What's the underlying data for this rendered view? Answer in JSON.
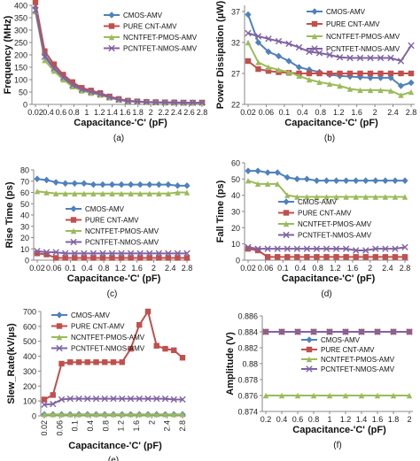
{
  "series_colors": [
    "#4f81bd",
    "#c0504d",
    "#9bbb59",
    "#8064a2"
  ],
  "series_markers": [
    "diamond",
    "square",
    "triangle",
    "cross"
  ],
  "chart_data": [
    {
      "panel": "(a)",
      "type": "line",
      "xlabel": "Capacitance-'C' (pF)",
      "ylabel": "Frequency (MHz)",
      "xticks": [
        "0.02",
        "0.4",
        "0.6",
        "0.8",
        "1",
        "1.2",
        "1.4",
        "1.6",
        "1.8",
        "2",
        "2.2",
        "2.4",
        "2.6",
        "2.8"
      ],
      "ylim": [
        0,
        400
      ],
      "yticks": [
        0,
        50,
        100,
        150,
        200,
        250,
        300,
        350,
        400
      ],
      "legend": "top-right",
      "x": [
        0.02,
        0.06,
        0.1,
        0.2,
        0.3,
        0.4,
        0.5,
        0.6,
        0.8,
        1.0,
        1.2,
        1.4,
        1.6,
        1.8,
        2.0,
        2.2,
        2.4,
        2.6,
        2.8
      ],
      "series": [
        {
          "name": "CMOS-AMV",
          "values": [
            390,
            200,
            150,
            112,
            82,
            62,
            52,
            42,
            30,
            20,
            14,
            12,
            10,
            9,
            8,
            8,
            7,
            7,
            7
          ]
        },
        {
          "name": "PURE CNT-AMV",
          "values": [
            412,
            215,
            162,
            120,
            90,
            67,
            56,
            46,
            32,
            22,
            15,
            12,
            10,
            9,
            8,
            8,
            7,
            7,
            7
          ]
        },
        {
          "name": "NCNTFET-PMOS-AMV",
          "values": [
            375,
            178,
            135,
            100,
            72,
            55,
            46,
            38,
            27,
            18,
            13,
            11,
            9,
            8,
            7,
            7,
            6,
            6,
            6
          ]
        },
        {
          "name": "PCNTFET-NMOS-AMV",
          "values": [
            380,
            192,
            145,
            108,
            78,
            60,
            50,
            41,
            29,
            19,
            13,
            11,
            9,
            8,
            8,
            7,
            7,
            7,
            7
          ]
        }
      ]
    },
    {
      "panel": "(b)",
      "type": "line",
      "xlabel": "Capacitance-'C' (pF)",
      "ylabel": "Power Dissipation (µW)",
      "xticks": [
        "0.02",
        "0.06",
        "0.1",
        "0.4",
        "0.8",
        "1.2",
        "1.6",
        "2",
        "2.4",
        "2.8"
      ],
      "ylim": [
        22,
        38
      ],
      "yticks": [
        22,
        27,
        32,
        37
      ],
      "legend": "top-right",
      "x": [
        0.02,
        0.06,
        0.1,
        0.2,
        0.4,
        0.6,
        0.8,
        1.0,
        1.2,
        1.4,
        1.6,
        1.8,
        2.0,
        2.2,
        2.4,
        2.6,
        2.8
      ],
      "series": [
        {
          "name": "CMOS-AMV",
          "values": [
            36.5,
            32,
            30.5,
            29.8,
            29,
            28,
            27.6,
            27.2,
            26.8,
            26.6,
            26.5,
            26.4,
            26.3,
            26.3,
            26.3,
            25,
            25.5
          ]
        },
        {
          "name": "PURE CNT-AMV",
          "values": [
            29,
            27.7,
            27.4,
            27.2,
            27.1,
            27,
            27,
            27,
            27,
            27,
            27,
            27,
            27,
            27,
            27,
            27,
            27
          ]
        },
        {
          "name": "NCNTFET-PMOS-AMV",
          "values": [
            32,
            28.8,
            28,
            27.6,
            27.2,
            26.6,
            26,
            25.6,
            25.3,
            25,
            24.5,
            24.3,
            24.3,
            24.3,
            24.2,
            23.5,
            24
          ]
        },
        {
          "name": "PCNTFET-NMOS-AMV",
          "values": [
            33.5,
            33,
            32.6,
            32.2,
            31.8,
            31.2,
            30.5,
            30.3,
            30,
            29.6,
            29.5,
            29.5,
            29.5,
            29.5,
            29.5,
            29,
            31.5
          ]
        }
      ]
    },
    {
      "panel": "(c)",
      "type": "line",
      "xlabel": "Capacitance-'C' (pF)",
      "ylabel": "Rise Time (ps)",
      "xticks": [
        "0.02",
        "0.06",
        "0.1",
        "0.4",
        "0.8",
        "1.2",
        "1.6",
        "2",
        "2.4",
        "2.8"
      ],
      "ylim": [
        0,
        80
      ],
      "yticks": [
        0,
        10,
        20,
        30,
        40,
        50,
        60,
        70,
        80
      ],
      "legend": "middle",
      "x": [
        0.02,
        0.06,
        0.1,
        0.2,
        0.4,
        0.6,
        0.8,
        1.0,
        1.2,
        1.4,
        1.6,
        1.8,
        2.0,
        2.2,
        2.4,
        2.6,
        2.8
      ],
      "series": [
        {
          "name": "CMOS-AMV",
          "values": [
            72,
            71,
            69,
            68,
            68,
            68,
            67,
            67,
            67,
            67,
            67,
            67,
            67,
            67,
            67,
            66,
            66
          ]
        },
        {
          "name": "PURE CNT-AMV",
          "values": [
            6,
            5,
            2,
            2,
            2,
            2,
            2,
            2,
            2,
            2,
            2,
            2,
            2,
            2,
            2,
            2,
            2
          ]
        },
        {
          "name": "NCNTFET-PMOS-AMV",
          "values": [
            61,
            60,
            59,
            59,
            59,
            59,
            59,
            59,
            59,
            59,
            59,
            59,
            59,
            59,
            59,
            60,
            60
          ]
        },
        {
          "name": "PCNTFET-NMOS-AMV",
          "values": [
            8,
            7,
            7,
            6,
            6,
            6,
            6,
            6,
            6,
            6,
            6,
            6,
            6,
            6,
            6,
            6,
            6
          ]
        }
      ]
    },
    {
      "panel": "(d)",
      "type": "line",
      "xlabel": "Capacitance-'C' (pF)",
      "ylabel": "Fall Time (ps)",
      "xticks": [
        "0.02",
        "0.06",
        "0.1",
        "0.4",
        "0.8",
        "1.2",
        "1.6",
        "2",
        "2.4",
        "2.8"
      ],
      "ylim": [
        0,
        60
      ],
      "yticks": [
        0,
        10,
        20,
        30,
        40,
        50,
        60
      ],
      "legend": "middle",
      "x": [
        0.02,
        0.06,
        0.1,
        0.2,
        0.4,
        0.6,
        0.8,
        1.0,
        1.2,
        1.4,
        1.6,
        1.8,
        2.0,
        2.2,
        2.4,
        2.6,
        2.8
      ],
      "series": [
        {
          "name": "CMOS-AMV",
          "values": [
            55,
            55,
            54,
            54,
            51,
            50,
            50,
            49,
            49,
            49,
            49,
            49,
            49,
            49,
            49,
            49,
            49
          ]
        },
        {
          "name": "PURE CNT-AMV",
          "values": [
            7,
            6,
            2,
            2,
            2,
            2,
            2,
            2,
            2,
            2,
            2,
            2,
            2,
            2,
            2,
            2,
            2
          ]
        },
        {
          "name": "NCNTFET-PMOS-AMV",
          "values": [
            49,
            47,
            47,
            47,
            40,
            39,
            39,
            39,
            39,
            39,
            39,
            39,
            39,
            39,
            39,
            39,
            39
          ]
        },
        {
          "name": "PCNTFET-NMOS-AMV",
          "values": [
            8,
            7,
            7,
            7,
            7,
            7,
            7,
            7,
            7,
            7,
            7,
            6,
            6,
            7,
            7,
            7,
            8
          ]
        }
      ]
    },
    {
      "panel": "(e)",
      "type": "line",
      "xlabel": "Capacitance-'C' (pF)",
      "ylabel": "Slew_Rate(kV/µs)",
      "xticks": [
        "0.02",
        "0.06",
        "0.1",
        "0.4",
        "0.8",
        "1.2",
        "1.6",
        "2",
        "2.4",
        "2.8"
      ],
      "ylim": [
        0,
        700
      ],
      "yticks": [
        0,
        100,
        200,
        300,
        400,
        500,
        600,
        700
      ],
      "legend": "top-left",
      "x": [
        0.02,
        0.06,
        0.1,
        0.2,
        0.4,
        0.6,
        0.8,
        1.0,
        1.2,
        1.4,
        1.6,
        1.8,
        2.0,
        2.2,
        2.4,
        2.6,
        2.8
      ],
      "series": [
        {
          "name": "CMOS-AMV",
          "values": [
            10,
            10,
            10,
            10,
            10,
            10,
            10,
            10,
            10,
            10,
            10,
            10,
            10,
            10,
            10,
            10,
            10
          ]
        },
        {
          "name": "PURE CNT-AMV",
          "values": [
            110,
            140,
            350,
            360,
            360,
            360,
            360,
            360,
            360,
            360,
            450,
            610,
            700,
            470,
            450,
            440,
            390
          ]
        },
        {
          "name": "NCNTFET-PMOS-AMV",
          "values": [
            10,
            10,
            10,
            10,
            10,
            10,
            10,
            10,
            10,
            10,
            10,
            10,
            10,
            10,
            10,
            10,
            10
          ]
        },
        {
          "name": "PCNTFET-NMOS-AMV",
          "values": [
            75,
            80,
            110,
            115,
            115,
            115,
            115,
            115,
            115,
            115,
            115,
            115,
            115,
            115,
            115,
            110,
            110
          ]
        }
      ]
    },
    {
      "panel": "(f)",
      "type": "line",
      "xlabel": "Capacitance-'C' (pF)",
      "ylabel": "Amplitude (V)",
      "xticks": [
        "0.2",
        "0.4",
        "0.6",
        "0.8",
        "1",
        "1.2",
        "1.4",
        "1.6",
        "1.8",
        "2"
      ],
      "ylim": [
        0.874,
        0.886
      ],
      "yticks": [
        "0.874",
        "0.876",
        "0.878",
        "0.88",
        "0.882",
        "0.884",
        "0.886"
      ],
      "legend": "middle",
      "x": [
        0.2,
        0.4,
        0.6,
        0.8,
        1.0,
        1.2,
        1.4,
        1.6,
        1.8,
        2.0
      ],
      "series": [
        {
          "name": "CMOS-AMV",
          "values": [
            0.884,
            0.884,
            0.884,
            0.884,
            0.884,
            0.884,
            0.884,
            0.884,
            0.884,
            0.884
          ]
        },
        {
          "name": "PURE CNT-AMV",
          "values": [
            0.884,
            0.884,
            0.884,
            0.884,
            0.884,
            0.884,
            0.884,
            0.884,
            0.884,
            0.884
          ]
        },
        {
          "name": "NCNTFET-PMOS-AMV",
          "values": [
            0.876,
            0.876,
            0.876,
            0.876,
            0.876,
            0.876,
            0.876,
            0.876,
            0.876,
            0.876
          ]
        },
        {
          "name": "PCNTFET-NMOS-AMV",
          "values": [
            0.884,
            0.884,
            0.884,
            0.884,
            0.884,
            0.884,
            0.884,
            0.884,
            0.884,
            0.884
          ]
        }
      ]
    }
  ]
}
